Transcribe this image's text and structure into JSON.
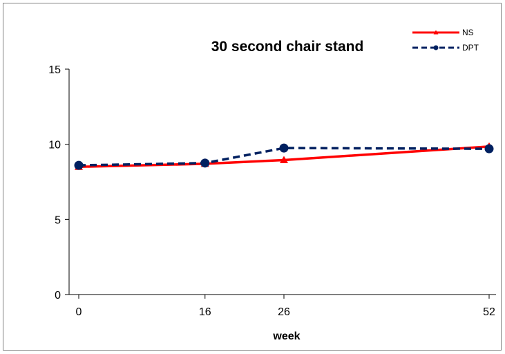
{
  "chart_data": {
    "type": "line",
    "title": "30 second chair stand",
    "xlabel": "week",
    "ylabel": "",
    "x": [
      0,
      16,
      26,
      52
    ],
    "x_tick_labels": [
      "0",
      "16",
      "26",
      "52"
    ],
    "xlim": [
      0,
      52
    ],
    "ylim": [
      0,
      15
    ],
    "y_ticks": [
      0,
      5,
      10,
      15
    ],
    "y_tick_labels": [
      "0",
      "5",
      "10",
      "15"
    ],
    "grid": false,
    "legend_position": "top-right",
    "series": [
      {
        "name": "NS",
        "values": [
          8.5,
          8.7,
          8.95,
          9.85
        ],
        "color": "#ff0000",
        "line_style": "solid",
        "marker": "triangle"
      },
      {
        "name": "DPT",
        "values": [
          8.6,
          8.75,
          9.75,
          9.7
        ],
        "color": "#002060",
        "line_style": "dashed",
        "marker": "circle"
      }
    ]
  }
}
